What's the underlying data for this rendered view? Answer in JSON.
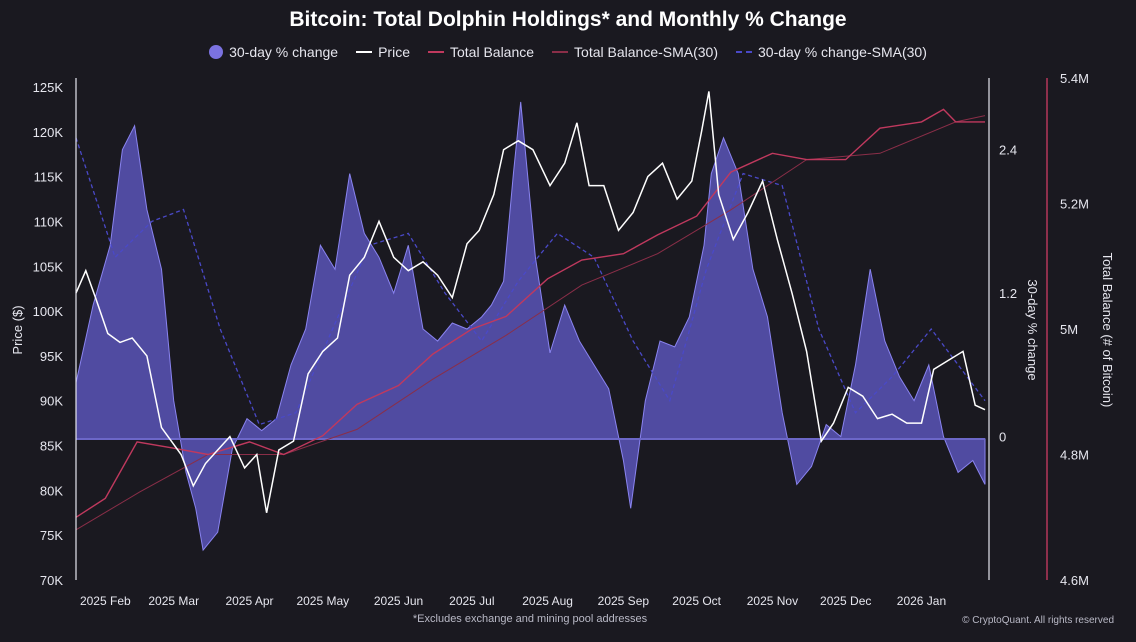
{
  "chart_data": {
    "type": "line",
    "title": "Bitcoin: Total Dolphin Holdings* and Monthly % Change",
    "footnote": "*Excludes exchange and mining pool addresses",
    "credit": "© CryptoQuant. All rights reserved",
    "y_left_label": "Price ($)",
    "y_right1_label": "30-day % change",
    "y_right2_label": "Total Balance (# of Bitcoin)",
    "y_left_ticks": [
      "70K",
      "75K",
      "80K",
      "85K",
      "90K",
      "95K",
      "100K",
      "105K",
      "110K",
      "115K",
      "120K",
      "125K"
    ],
    "y_right1_ticks": [
      "0",
      "1.2",
      "2.4"
    ],
    "y_right2_ticks": [
      "4.6M",
      "4.8M",
      "5M",
      "5.2M",
      "5.4M"
    ],
    "x_tick_labels": [
      "2025 Feb",
      "2025 Mar",
      "2025 Apr",
      "2025 May",
      "2025 Jun",
      "2025 Jul",
      "2025 Aug",
      "2025 Sep",
      "2025 Oct",
      "2025 Nov",
      "2025 Dec",
      "2026 Jan"
    ],
    "x_range": [
      "2025-01-20",
      "2026-01-27"
    ],
    "price_range": [
      70000,
      126000
    ],
    "change_range": [
      -1.2,
      3.0
    ],
    "balance_range": [
      4600000,
      5400000
    ],
    "legend": [
      {
        "label": "30-day % change",
        "kind": "dot",
        "color": "#7b72e0"
      },
      {
        "label": "Price",
        "kind": "line",
        "color": "#ffffff"
      },
      {
        "label": "Total Balance",
        "kind": "line",
        "color": "#c0395e"
      },
      {
        "label": "Total Balance-SMA(30)",
        "kind": "line",
        "color": "#8a2e48"
      },
      {
        "label": "30-day % change-SMA(30)",
        "kind": "dash",
        "color": "#4a49c8"
      }
    ],
    "series": [
      {
        "name": "30-day % change",
        "x": [
          "2025-01-20",
          "2025-01-27",
          "2025-02-03",
          "2025-02-08",
          "2025-02-13",
          "2025-02-18",
          "2025-02-24",
          "2025-03-01",
          "2025-03-06",
          "2025-03-10",
          "2025-03-13",
          "2025-03-19",
          "2025-03-25",
          "2025-03-31",
          "2025-04-06",
          "2025-04-12",
          "2025-04-18",
          "2025-04-24",
          "2025-04-30",
          "2025-05-06",
          "2025-05-12",
          "2025-05-18",
          "2025-05-24",
          "2025-05-30",
          "2025-06-05",
          "2025-06-11",
          "2025-06-17",
          "2025-06-23",
          "2025-06-29",
          "2025-07-05",
          "2025-07-09",
          "2025-07-14",
          "2025-07-18",
          "2025-07-21",
          "2025-07-27",
          "2025-08-02",
          "2025-08-08",
          "2025-08-14",
          "2025-08-20",
          "2025-08-26",
          "2025-09-01",
          "2025-09-04",
          "2025-09-10",
          "2025-09-16",
          "2025-09-22",
          "2025-09-28",
          "2025-10-04",
          "2025-10-07",
          "2025-10-12",
          "2025-10-18",
          "2025-10-24",
          "2025-10-30",
          "2025-11-05",
          "2025-11-11",
          "2025-11-17",
          "2025-11-23",
          "2025-11-29",
          "2025-12-05",
          "2025-12-11",
          "2025-12-17",
          "2025-12-23",
          "2025-12-29",
          "2026-01-04",
          "2026-01-10",
          "2026-01-16",
          "2026-01-22",
          "2026-01-27"
        ],
        "values": [
          0.45,
          1.1,
          1.6,
          2.4,
          2.6,
          1.9,
          1.4,
          0.3,
          -0.3,
          -0.6,
          -0.95,
          -0.8,
          -0.1,
          0.15,
          0.05,
          0.15,
          0.6,
          0.9,
          1.6,
          1.4,
          2.2,
          1.7,
          1.5,
          1.2,
          1.6,
          0.9,
          0.8,
          0.95,
          0.9,
          1.0,
          1.1,
          1.3,
          2.2,
          2.8,
          1.5,
          0.7,
          1.1,
          0.8,
          0.6,
          0.4,
          -0.2,
          -0.6,
          0.3,
          0.8,
          0.75,
          1.0,
          1.6,
          2.2,
          2.5,
          2.2,
          1.4,
          1.0,
          0.2,
          -0.4,
          -0.25,
          0.1,
          0.0,
          0.6,
          1.4,
          0.8,
          0.5,
          0.3,
          0.6,
          0.0,
          -0.3,
          -0.2,
          -0.4
        ]
      },
      {
        "name": "Price",
        "x": [
          "2025-01-20",
          "2025-01-24",
          "2025-01-28",
          "2025-02-02",
          "2025-02-07",
          "2025-02-12",
          "2025-02-18",
          "2025-02-24",
          "2025-02-28",
          "2025-03-04",
          "2025-03-09",
          "2025-03-14",
          "2025-03-19",
          "2025-03-24",
          "2025-03-30",
          "2025-04-04",
          "2025-04-08",
          "2025-04-13",
          "2025-04-19",
          "2025-04-25",
          "2025-05-01",
          "2025-05-07",
          "2025-05-12",
          "2025-05-18",
          "2025-05-24",
          "2025-05-30",
          "2025-06-05",
          "2025-06-11",
          "2025-06-17",
          "2025-06-23",
          "2025-06-29",
          "2025-07-04",
          "2025-07-10",
          "2025-07-14",
          "2025-07-20",
          "2025-07-26",
          "2025-08-02",
          "2025-08-08",
          "2025-08-13",
          "2025-08-18",
          "2025-08-24",
          "2025-08-30",
          "2025-09-05",
          "2025-09-11",
          "2025-09-17",
          "2025-09-23",
          "2025-09-29",
          "2025-10-03",
          "2025-10-06",
          "2025-10-10",
          "2025-10-16",
          "2025-10-22",
          "2025-10-28",
          "2025-11-03",
          "2025-11-09",
          "2025-11-15",
          "2025-11-21",
          "2025-11-26",
          "2025-12-02",
          "2025-12-08",
          "2025-12-14",
          "2025-12-20",
          "2025-12-26",
          "2026-01-01",
          "2026-01-06",
          "2026-01-12",
          "2026-01-18",
          "2026-01-23",
          "2026-01-27"
        ],
        "values": [
          102000,
          104500,
          101500,
          97500,
          96500,
          97000,
          95000,
          87000,
          85500,
          84000,
          80500,
          83000,
          84500,
          86000,
          82500,
          84000,
          77500,
          84500,
          85500,
          93000,
          95500,
          97000,
          104000,
          106000,
          110000,
          106000,
          104500,
          105500,
          104000,
          101500,
          107500,
          109000,
          113000,
          118000,
          119000,
          118000,
          114000,
          116500,
          121000,
          114000,
          114000,
          109000,
          111000,
          115000,
          116500,
          112500,
          114500,
          120000,
          124500,
          113000,
          108000,
          111000,
          114500,
          108000,
          102000,
          95500,
          85500,
          87500,
          91500,
          90500,
          88000,
          88500,
          87500,
          87500,
          93500,
          94500,
          95500,
          89500,
          89000
        ]
      },
      {
        "name": "Total Balance",
        "x": [
          "2025-01-20",
          "2025-02-01",
          "2025-02-14",
          "2025-03-01",
          "2025-03-15",
          "2025-04-01",
          "2025-04-15",
          "2025-05-01",
          "2025-05-15",
          "2025-06-01",
          "2025-06-15",
          "2025-07-01",
          "2025-07-15",
          "2025-08-01",
          "2025-08-15",
          "2025-09-01",
          "2025-09-15",
          "2025-10-01",
          "2025-10-15",
          "2025-11-01",
          "2025-11-15",
          "2025-12-01",
          "2025-12-15",
          "2026-01-01",
          "2026-01-10",
          "2026-01-15",
          "2026-01-27"
        ],
        "values": [
          4700000,
          4730000,
          4820000,
          4810000,
          4800000,
          4820000,
          4800000,
          4830000,
          4880000,
          4910000,
          4960000,
          5000000,
          5020000,
          5080000,
          5110000,
          5120000,
          5150000,
          5180000,
          5250000,
          5280000,
          5270000,
          5270000,
          5320000,
          5330000,
          5350000,
          5330000,
          5330000
        ]
      },
      {
        "name": "Total Balance-SMA(30)",
        "x": [
          "2025-01-20",
          "2025-02-15",
          "2025-03-15",
          "2025-04-15",
          "2025-05-15",
          "2025-06-15",
          "2025-07-15",
          "2025-08-15",
          "2025-09-15",
          "2025-10-15",
          "2025-11-15",
          "2025-12-15",
          "2026-01-15",
          "2026-01-27"
        ],
        "values": [
          4680000,
          4740000,
          4800000,
          4800000,
          4840000,
          4920000,
          4990000,
          5070000,
          5120000,
          5190000,
          5270000,
          5280000,
          5330000,
          5340000
        ]
      },
      {
        "name": "30-day % change-SMA(30)",
        "x": [
          "2025-01-20",
          "2025-02-05",
          "2025-02-20",
          "2025-03-05",
          "2025-03-20",
          "2025-04-05",
          "2025-04-20",
          "2025-05-05",
          "2025-05-20",
          "2025-06-05",
          "2025-06-20",
          "2025-07-05",
          "2025-07-20",
          "2025-08-05",
          "2025-08-20",
          "2025-09-05",
          "2025-09-20",
          "2025-10-05",
          "2025-10-20",
          "2025-11-05",
          "2025-11-20",
          "2025-12-05",
          "2025-12-20",
          "2026-01-05",
          "2026-01-27"
        ],
        "values": [
          2.5,
          1.5,
          1.8,
          1.9,
          0.9,
          0.1,
          0.2,
          0.9,
          1.6,
          1.7,
          1.2,
          0.8,
          1.3,
          1.7,
          1.5,
          0.8,
          0.3,
          1.4,
          2.2,
          2.1,
          0.9,
          0.2,
          0.5,
          0.9,
          0.3
        ]
      }
    ]
  }
}
